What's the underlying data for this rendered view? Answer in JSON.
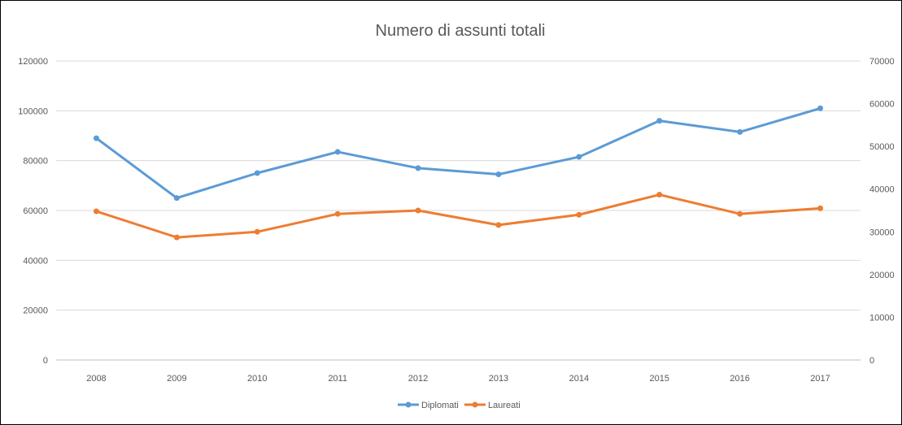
{
  "chart_data": {
    "type": "line",
    "title": "Numero di assunti totali",
    "categories": [
      "2008",
      "2009",
      "2010",
      "2011",
      "2012",
      "2013",
      "2014",
      "2015",
      "2016",
      "2017"
    ],
    "y_left": {
      "min": 0,
      "max": 120000,
      "ticks": [
        "0",
        "20000",
        "40000",
        "60000",
        "80000",
        "100000",
        "120000"
      ]
    },
    "y_right": {
      "min": 0,
      "max": 70000,
      "ticks": [
        "0",
        "10000",
        "20000",
        "30000",
        "40000",
        "50000",
        "60000",
        "70000"
      ]
    },
    "grid": true,
    "legend_position": "bottom",
    "series": [
      {
        "name": "Diplomati",
        "axis": "left",
        "color": "#5B9BD5",
        "values": [
          89000,
          65000,
          75000,
          83500,
          77000,
          74500,
          81500,
          96000,
          91500,
          101000
        ]
      },
      {
        "name": "Laureati",
        "axis": "right",
        "color": "#ED7D31",
        "values": [
          34800,
          28700,
          30000,
          34200,
          35000,
          31600,
          34000,
          38700,
          34200,
          35500
        ]
      }
    ]
  }
}
